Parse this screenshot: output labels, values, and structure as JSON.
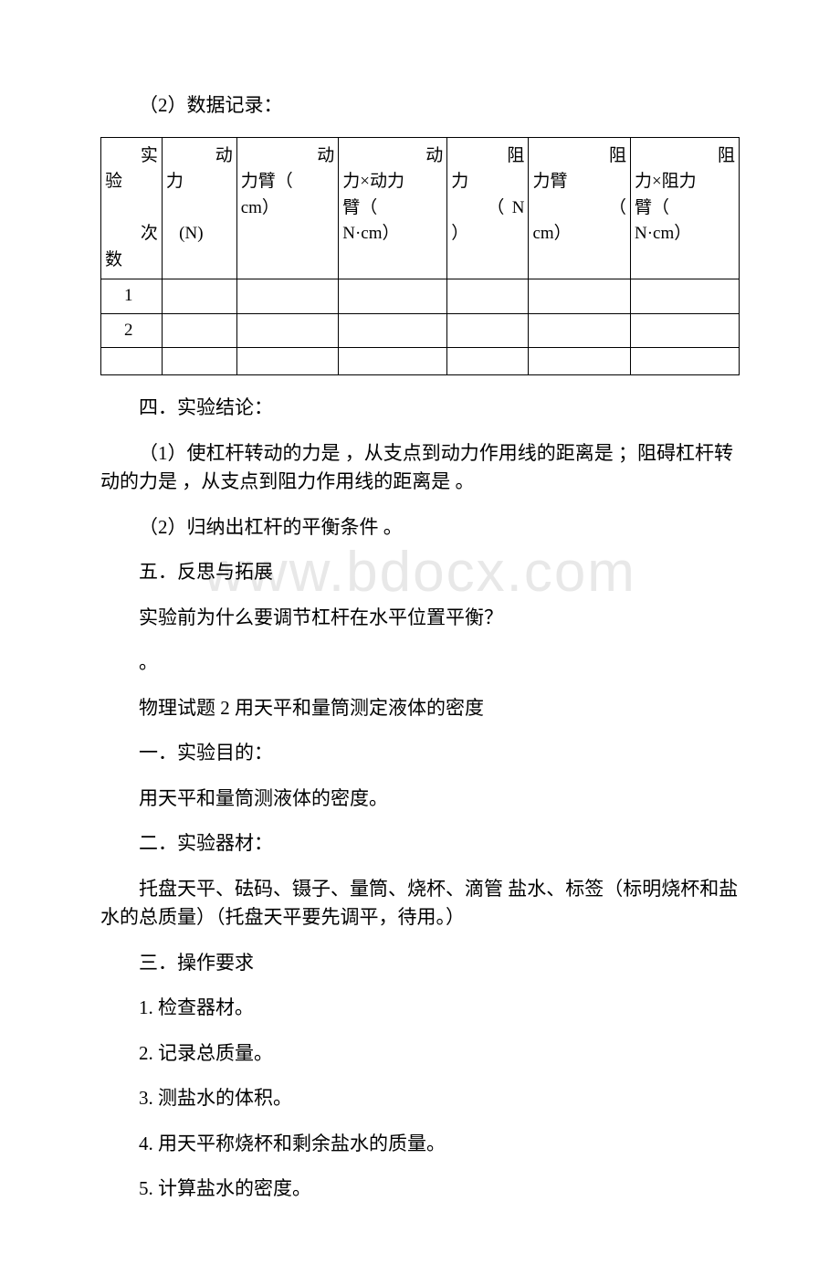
{
  "watermark": "www.bdocx.com",
  "section1": {
    "label": "（2）数据记录：",
    "headers": {
      "c1a": "实",
      "c1b": "验",
      "c1c": "次",
      "c1d": "数",
      "c2a": "动",
      "c2b": "力",
      "c2c": "(N)",
      "c3a": "动",
      "c3b": "力臂（",
      "c3c": "cm）",
      "c4a": "动",
      "c4b": "力×动力",
      "c4c": "臂（",
      "c4d": "N·cm）",
      "c5a": "阻",
      "c5b": "力",
      "c5c": "（N",
      "c5d": "）",
      "c6a": "阻",
      "c6b": "力臂",
      "c6c": "（",
      "c6d": "cm）",
      "c7a": "阻",
      "c7b": "力×阻力",
      "c7c": "臂（",
      "c7d": "N·cm）"
    },
    "row_labels": {
      "r1": "1",
      "r2": "2"
    }
  },
  "section4": {
    "title": "四．实验结论：",
    "item1": "（1）使杠杆转动的力是 ，从支点到动力作用线的距离是 ；阻碍杠杆转动的力是 ，从支点到阻力作用线的距离是 。",
    "item2": "（2）归纳出杠杆的平衡条件 。"
  },
  "section5": {
    "title": "五．反思与拓展",
    "q1": "实验前为什么要调节杠杆在水平位置平衡？",
    "ans": "。"
  },
  "exp2": {
    "title": "物理试题 2 用天平和量筒测定液体的密度",
    "s1_title": "一．实验目的：",
    "s1_body": "用天平和量筒测液体的密度。",
    "s2_title": "二．实验器材：",
    "s2_body": "托盘天平、砝码、镊子、量筒、烧杯、滴管 盐水、标签（标明烧杯和盐水的总质量）（托盘天平要先调平，待用。）",
    "s3_title": "三．操作要求",
    "s3_1": "1. 检查器材。",
    "s3_2": "2. 记录总质量。",
    "s3_3": "3. 测盐水的体积。",
    "s3_4": "4. 用天平称烧杯和剩余盐水的质量。",
    "s3_5": "5. 计算盐水的密度。"
  }
}
